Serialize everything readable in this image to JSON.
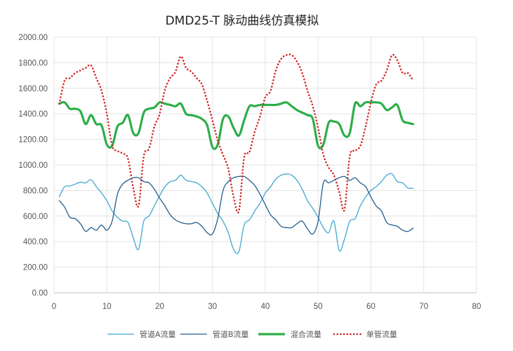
{
  "chart_data": {
    "type": "line",
    "title": "DMD25-T 脉动曲线仿真模拟",
    "xlim": [
      0,
      80
    ],
    "ylim": [
      0,
      2000
    ],
    "x_ticks": [
      "0",
      "10",
      "20",
      "30",
      "40",
      "50",
      "60",
      "70",
      "80"
    ],
    "y_ticks": [
      "0.00",
      "200.00",
      "400.00",
      "600.00",
      "800.00",
      "1000.00",
      "1200.00",
      "1400.00",
      "1600.00",
      "1800.00",
      "2000.00"
    ],
    "grid": "vertical and horizontal gridlines",
    "legend_position": "bottom",
    "x": [
      1,
      2,
      3,
      4,
      5,
      6,
      7,
      8,
      9,
      10,
      11,
      12,
      13,
      14,
      15,
      16,
      17,
      18,
      19,
      20,
      21,
      22,
      23,
      24,
      25,
      26,
      27,
      28,
      29,
      30,
      31,
      32,
      33,
      34,
      35,
      36,
      37,
      38,
      39,
      40,
      41,
      42,
      43,
      44,
      45,
      46,
      47,
      48,
      49,
      50,
      51,
      52,
      53,
      54,
      55,
      56,
      57,
      58,
      59,
      60,
      61,
      62,
      63,
      64,
      65,
      66,
      67,
      68
    ],
    "series": [
      {
        "name": "管道A流量",
        "color": "#3FA8D3",
        "style": "thin-solid",
        "values": [
          750,
          830,
          835,
          850,
          865,
          860,
          885,
          830,
          780,
          720,
          640,
          590,
          560,
          550,
          430,
          340,
          560,
          600,
          680,
          760,
          830,
          870,
          880,
          920,
          880,
          870,
          860,
          830,
          780,
          700,
          620,
          560,
          470,
          340,
          320,
          530,
          570,
          640,
          700,
          780,
          830,
          890,
          920,
          930,
          920,
          880,
          810,
          720,
          660,
          590,
          510,
          470,
          560,
          330,
          420,
          560,
          580,
          680,
          750,
          800,
          830,
          870,
          920,
          930,
          870,
          860,
          820,
          818
        ]
      },
      {
        "name": "管道B流量",
        "color": "#215E8E",
        "style": "thin-solid",
        "values": [
          720,
          670,
          590,
          580,
          540,
          480,
          510,
          490,
          530,
          490,
          560,
          770,
          850,
          880,
          900,
          900,
          870,
          860,
          810,
          740,
          680,
          610,
          570,
          550,
          540,
          540,
          550,
          520,
          470,
          460,
          580,
          800,
          870,
          900,
          910,
          910,
          880,
          840,
          770,
          690,
          610,
          570,
          520,
          510,
          510,
          540,
          560,
          500,
          460,
          560,
          860,
          860,
          880,
          900,
          910,
          880,
          900,
          860,
          830,
          750,
          680,
          640,
          550,
          530,
          520,
          490,
          480,
          505
        ]
      },
      {
        "name": "混合流量",
        "color": "#2DAE4A",
        "style": "thick-solid",
        "values": [
          1480,
          1490,
          1440,
          1440,
          1420,
          1320,
          1390,
          1320,
          1310,
          1160,
          1150,
          1300,
          1330,
          1390,
          1250,
          1250,
          1410,
          1440,
          1450,
          1490,
          1480,
          1470,
          1460,
          1480,
          1400,
          1390,
          1380,
          1360,
          1310,
          1140,
          1160,
          1360,
          1380,
          1290,
          1230,
          1350,
          1460,
          1460,
          1470,
          1470,
          1470,
          1470,
          1480,
          1490,
          1460,
          1430,
          1410,
          1390,
          1360,
          1150,
          1160,
          1330,
          1340,
          1320,
          1230,
          1250,
          1480,
          1460,
          1490,
          1490,
          1490,
          1480,
          1430,
          1450,
          1470,
          1350,
          1330,
          1320
        ]
      },
      {
        "name": "单管流量",
        "color": "#D42A2A",
        "style": "dotted",
        "values": [
          1480,
          1660,
          1680,
          1720,
          1740,
          1760,
          1780,
          1680,
          1580,
          1400,
          1150,
          1110,
          1090,
          1050,
          820,
          680,
          1070,
          1130,
          1300,
          1400,
          1590,
          1680,
          1730,
          1850,
          1760,
          1730,
          1680,
          1630,
          1500,
          1350,
          1190,
          1080,
          970,
          750,
          640,
          1060,
          1100,
          1260,
          1380,
          1530,
          1580,
          1740,
          1830,
          1860,
          1860,
          1810,
          1720,
          1580,
          1460,
          1290,
          1080,
          980,
          920,
          790,
          650,
          1070,
          1110,
          1150,
          1300,
          1490,
          1630,
          1660,
          1740,
          1860,
          1820,
          1720,
          1720,
          1660
        ]
      }
    ]
  }
}
